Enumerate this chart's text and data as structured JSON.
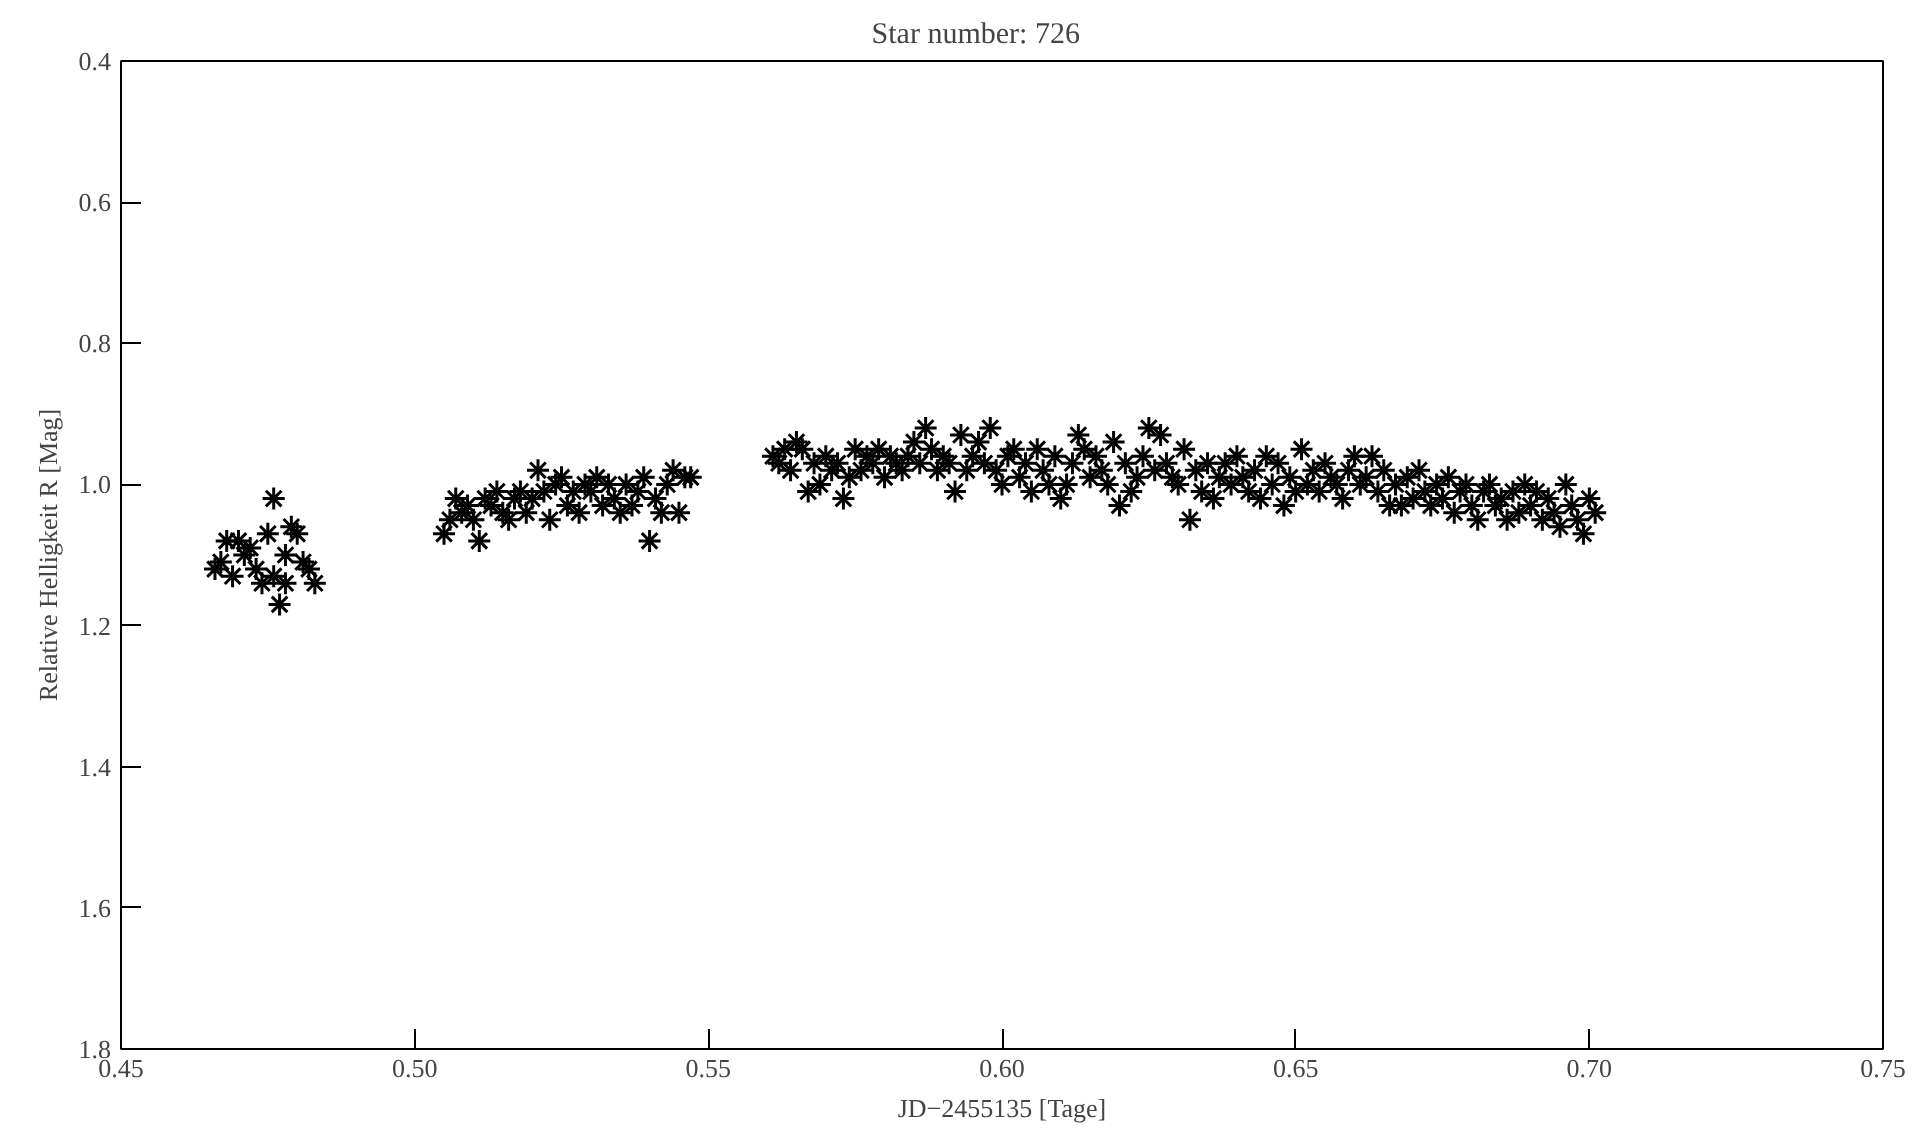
{
  "chart_data": {
    "type": "scatter",
    "title": "Star number:        726",
    "xlabel": "JD−2455135 [Tage]",
    "ylabel": "Relative Helligkeit R [Mag]",
    "marker": "cross",
    "grid": false,
    "xlim": [
      0.45,
      0.75
    ],
    "ylim": [
      1.8,
      0.4
    ],
    "xticks": [
      {
        "value": 0.45,
        "label": "0.45"
      },
      {
        "value": 0.5,
        "label": "0.50"
      },
      {
        "value": 0.55,
        "label": "0.55"
      },
      {
        "value": 0.6,
        "label": "0.60"
      },
      {
        "value": 0.65,
        "label": "0.65"
      },
      {
        "value": 0.7,
        "label": "0.70"
      },
      {
        "value": 0.75,
        "label": "0.75"
      }
    ],
    "yticks": [
      {
        "value": 0.4,
        "label": "0.4"
      },
      {
        "value": 0.6,
        "label": "0.6"
      },
      {
        "value": 0.8,
        "label": "0.8"
      },
      {
        "value": 1.0,
        "label": "1.0"
      },
      {
        "value": 1.2,
        "label": "1.2"
      },
      {
        "value": 1.4,
        "label": "1.4"
      },
      {
        "value": 1.6,
        "label": "1.6"
      },
      {
        "value": 1.8,
        "label": "1.8"
      }
    ],
    "series": [
      {
        "color": "#000000",
        "x": [
          0.466,
          0.467,
          0.468,
          0.469,
          0.47,
          0.471,
          0.472,
          0.473,
          0.474,
          0.475,
          0.476,
          0.476,
          0.477,
          0.478,
          0.478,
          0.479,
          0.48,
          0.481,
          0.482,
          0.483,
          0.505,
          0.506,
          0.507,
          0.508,
          0.509,
          0.51,
          0.511,
          0.512,
          0.513,
          0.514,
          0.515,
          0.516,
          0.517,
          0.518,
          0.519,
          0.52,
          0.521,
          0.522,
          0.523,
          0.524,
          0.525,
          0.526,
          0.527,
          0.528,
          0.529,
          0.53,
          0.531,
          0.532,
          0.533,
          0.534,
          0.535,
          0.536,
          0.537,
          0.538,
          0.539,
          0.54,
          0.541,
          0.542,
          0.543,
          0.544,
          0.545,
          0.546,
          0.547,
          0.561,
          0.562,
          0.563,
          0.564,
          0.565,
          0.566,
          0.567,
          0.568,
          0.569,
          0.57,
          0.571,
          0.572,
          0.573,
          0.574,
          0.575,
          0.576,
          0.577,
          0.578,
          0.579,
          0.58,
          0.581,
          0.582,
          0.583,
          0.584,
          0.585,
          0.586,
          0.587,
          0.588,
          0.589,
          0.59,
          0.591,
          0.592,
          0.593,
          0.594,
          0.595,
          0.596,
          0.597,
          0.598,
          0.599,
          0.6,
          0.601,
          0.602,
          0.603,
          0.604,
          0.605,
          0.606,
          0.607,
          0.608,
          0.609,
          0.61,
          0.611,
          0.612,
          0.613,
          0.614,
          0.615,
          0.616,
          0.617,
          0.618,
          0.619,
          0.62,
          0.621,
          0.622,
          0.623,
          0.624,
          0.625,
          0.626,
          0.627,
          0.628,
          0.629,
          0.63,
          0.631,
          0.632,
          0.633,
          0.634,
          0.635,
          0.636,
          0.637,
          0.638,
          0.639,
          0.64,
          0.641,
          0.642,
          0.643,
          0.644,
          0.645,
          0.646,
          0.647,
          0.648,
          0.649,
          0.65,
          0.651,
          0.652,
          0.653,
          0.654,
          0.655,
          0.656,
          0.657,
          0.658,
          0.659,
          0.66,
          0.661,
          0.662,
          0.663,
          0.664,
          0.665,
          0.666,
          0.667,
          0.668,
          0.669,
          0.67,
          0.671,
          0.672,
          0.673,
          0.674,
          0.675,
          0.676,
          0.677,
          0.678,
          0.679,
          0.68,
          0.681,
          0.682,
          0.683,
          0.684,
          0.685,
          0.686,
          0.687,
          0.688,
          0.689,
          0.69,
          0.691,
          0.692,
          0.693,
          0.694,
          0.695,
          0.696,
          0.697,
          0.698,
          0.699,
          0.7,
          0.701
        ],
        "values": [
          1.12,
          1.11,
          1.08,
          1.13,
          1.08,
          1.1,
          1.09,
          1.12,
          1.14,
          1.07,
          1.13,
          1.02,
          1.17,
          1.1,
          1.14,
          1.06,
          1.07,
          1.11,
          1.12,
          1.14,
          1.07,
          1.05,
          1.02,
          1.04,
          1.03,
          1.05,
          1.08,
          1.02,
          1.03,
          1.01,
          1.04,
          1.05,
          1.02,
          1.01,
          1.04,
          1.02,
          0.98,
          1.01,
          1.05,
          1.0,
          0.99,
          1.03,
          1.01,
          1.04,
          1.0,
          1.01,
          0.99,
          1.03,
          1.0,
          1.02,
          1.04,
          1.0,
          1.03,
          1.01,
          0.99,
          1.08,
          1.02,
          1.04,
          1.0,
          0.98,
          1.04,
          0.99,
          0.99,
          0.96,
          0.97,
          0.95,
          0.98,
          0.94,
          0.95,
          1.01,
          0.97,
          1.0,
          0.96,
          0.98,
          0.97,
          1.02,
          0.99,
          0.95,
          0.98,
          0.96,
          0.97,
          0.95,
          0.99,
          0.96,
          0.97,
          0.98,
          0.96,
          0.94,
          0.97,
          0.92,
          0.95,
          0.98,
          0.96,
          0.97,
          1.01,
          0.93,
          0.98,
          0.96,
          0.94,
          0.97,
          0.92,
          0.98,
          1.0,
          0.96,
          0.95,
          0.99,
          0.97,
          1.01,
          0.95,
          0.98,
          1.0,
          0.96,
          1.02,
          1.0,
          0.97,
          0.93,
          0.95,
          0.99,
          0.96,
          0.98,
          1.0,
          0.94,
          1.03,
          0.97,
          1.01,
          0.99,
          0.96,
          0.92,
          0.98,
          0.93,
          0.97,
          0.99,
          1.0,
          0.95,
          1.05,
          0.98,
          1.01,
          0.97,
          1.02,
          0.99,
          0.97,
          1.0,
          0.96,
          0.99,
          1.01,
          0.98,
          1.02,
          0.96,
          1.0,
          0.97,
          1.03,
          0.99,
          1.01,
          0.95,
          1.0,
          0.98,
          1.01,
          0.97,
          0.99,
          1.0,
          1.02,
          0.98,
          0.96,
          1.0,
          0.99,
          0.96,
          1.01,
          0.98,
          1.03,
          1.0,
          1.03,
          0.99,
          1.02,
          0.98,
          1.01,
          1.03,
          1.0,
          1.02,
          0.99,
          1.04,
          1.01,
          1.0,
          1.03,
          1.05,
          1.01,
          1.0,
          1.03,
          1.02,
          1.05,
          1.01,
          1.04,
          1.0,
          1.03,
          1.01,
          1.05,
          1.02,
          1.04,
          1.06,
          1.0,
          1.03,
          1.05,
          1.07,
          1.02,
          1.04
        ]
      }
    ]
  }
}
